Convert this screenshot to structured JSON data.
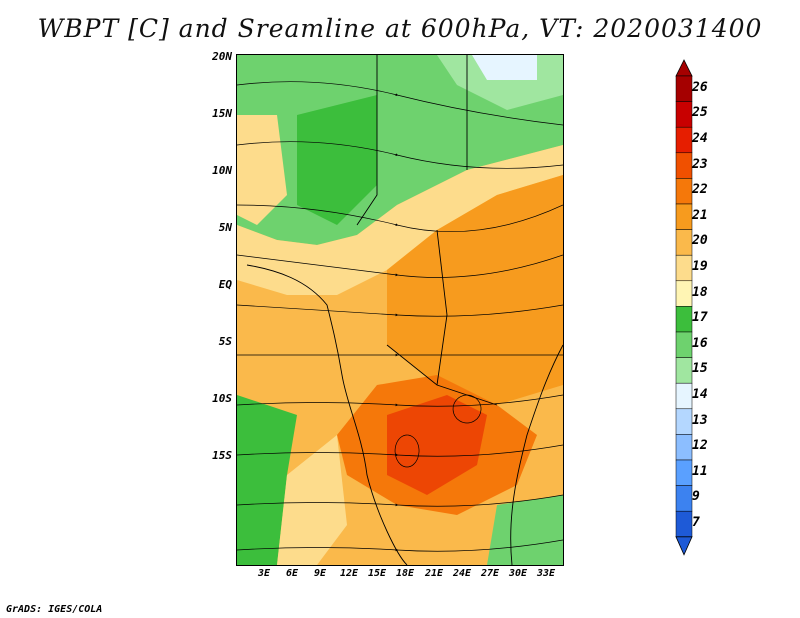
{
  "title": "WBPT [C] and Sreamline at 600hPa, VT: 2020031400",
  "footer": "GrADS: IGES/COLA",
  "latitude_labels": [
    "20N",
    "15N",
    "10N",
    "5N",
    "EQ",
    "5S",
    "10S",
    "15S"
  ],
  "longitude_labels": [
    "3E",
    "6E",
    "9E",
    "12E",
    "15E",
    "18E",
    "21E",
    "24E",
    "27E",
    "30E",
    "33E"
  ],
  "colorbar": {
    "labels": [
      "26",
      "25",
      "24",
      "23",
      "22",
      "21",
      "20",
      "19",
      "18",
      "17",
      "16",
      "15",
      "14",
      "13",
      "12",
      "11",
      "9",
      "7"
    ],
    "colors": [
      "#a50000",
      "#c80000",
      "#e61e00",
      "#f05000",
      "#f5780a",
      "#f79b1e",
      "#fab94b",
      "#fddc8c",
      "#fff5b4",
      "#3cbe3c",
      "#6ed26e",
      "#a0e6a0",
      "#e6f5ff",
      "#b4d7ff",
      "#8cbeff",
      "#5aa0ff",
      "#3c82f0",
      "#1e5ad7"
    ]
  },
  "colors": {
    "warm": "#f5780a",
    "cool": "#6ed26e"
  }
}
